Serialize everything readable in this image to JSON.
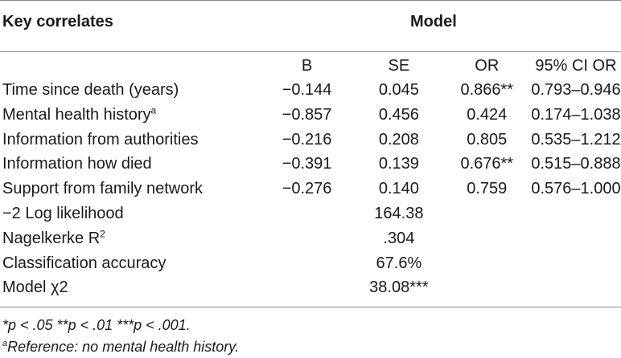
{
  "header": {
    "left": "Key correlates",
    "right": "Model"
  },
  "columns": {
    "b": "B",
    "se": "SE",
    "or": "OR",
    "ci": "95% CI OR"
  },
  "rows": [
    {
      "label": "Time since death (years)",
      "label_sup": "",
      "b": "−0.144",
      "se": "0.045",
      "or": "0.866**",
      "or_bold": true,
      "ci": "0.793–0.946"
    },
    {
      "label": "Mental health history",
      "label_sup": "a",
      "b": "−0.857",
      "se": "0.456",
      "or": "0.424",
      "or_bold": false,
      "ci": "0.174–1.038"
    },
    {
      "label": "Information from authorities",
      "label_sup": "",
      "b": "−0.216",
      "se": "0.208",
      "or": "0.805",
      "or_bold": false,
      "ci": "0.535–1.212"
    },
    {
      "label": "Information how died",
      "label_sup": "",
      "b": "−0.391",
      "se": "0.139",
      "or": "0.676**",
      "or_bold": true,
      "ci": "0.515–0.888"
    },
    {
      "label": "Support from family network",
      "label_sup": "",
      "b": "−0.276",
      "se": "0.140",
      "or": "0.759",
      "or_bold": false,
      "ci": "0.576–1.000"
    }
  ],
  "model_stats": [
    {
      "label": "−2 Log likelihood",
      "label_sup": "",
      "value": "164.38",
      "bold": false
    },
    {
      "label": "Nagelkerke R",
      "label_sup": "2",
      "value": ".304",
      "bold": false
    },
    {
      "label": "Classification accuracy",
      "label_sup": "",
      "value": "67.6%",
      "bold": false
    },
    {
      "label": "Model χ2",
      "label_sup": "",
      "value": "38.08***",
      "bold": true
    }
  ],
  "footnotes": {
    "significance": "*p < .05 **p < .01 ***p < .001.",
    "reference_sup": "a",
    "reference": "Reference: no mental health history."
  }
}
